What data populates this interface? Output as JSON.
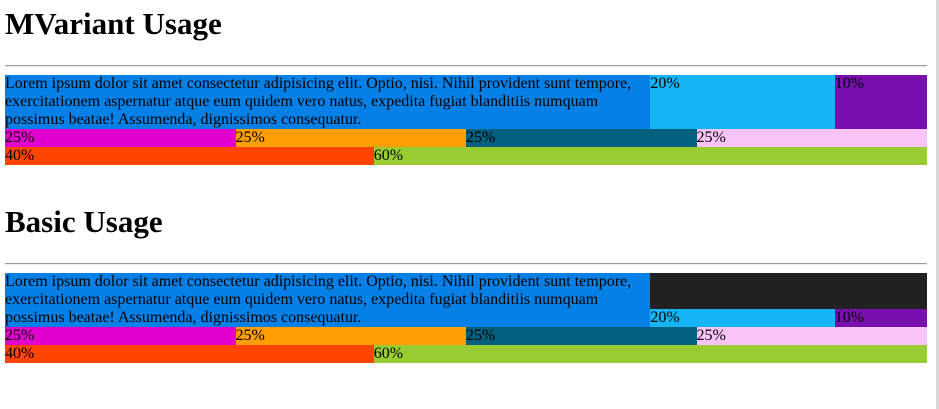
{
  "colors": {
    "blue": "#0580e6",
    "sky": "#14b4f5",
    "purple": "#7910ae",
    "magenta": "#e200cf",
    "orange": "#ff9e00",
    "teal": "#00607e",
    "pink": "#fbc4f9",
    "red_orange": "#ff4500",
    "yellow_green": "#99cc32",
    "dark": "#212121"
  },
  "sections": [
    {
      "title": "MVariant Usage",
      "row1": {
        "text": "Lorem ipsum dolor sit amet consectetur adipisicing elit. Optio, nisi. Nihil provident sunt tempore, exercitationem aspernatur atque eum quidem vero natus, expedita fugiat blanditiis numquam possimus beatae! Assumenda, dignissimos consequatur.",
        "label_20": "20%",
        "label_10": "10%"
      },
      "row2": [
        "25%",
        "25%",
        "25%",
        "25%"
      ],
      "row3": [
        "40%",
        "60%"
      ]
    },
    {
      "title": "Basic Usage",
      "row1": {
        "text": "Lorem ipsum dolor sit amet consectetur adipisicing elit. Optio, nisi. Nihil provident sunt tempore, exercitationem aspernatur atque eum quidem vero natus, expedita fugiat blanditiis numquam possimus beatae! Assumenda, dignissimos consequatur.",
        "label_20": "20%",
        "label_10": "10%"
      },
      "row2": [
        "25%",
        "25%",
        "25%",
        "25%"
      ],
      "row3": [
        "40%",
        "60%"
      ]
    }
  ]
}
